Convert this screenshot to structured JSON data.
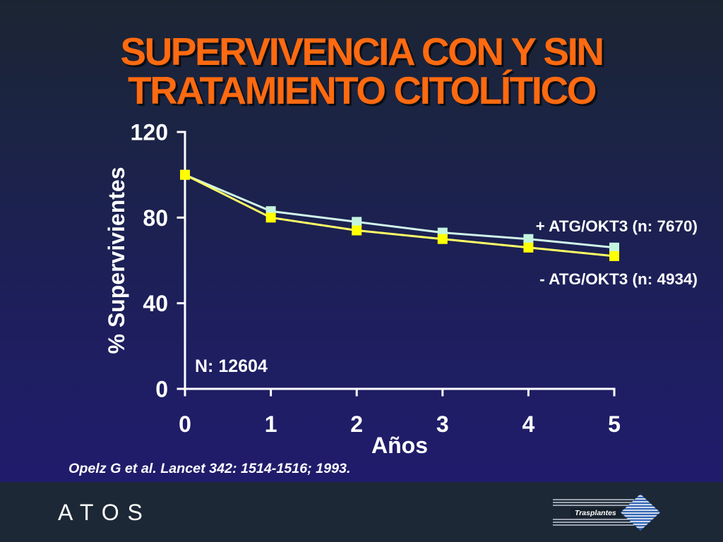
{
  "slide": {
    "citation": "Opelz G et al. Lancet 342: 1514-1516; 1993.",
    "title_color": "#ff6a10"
  },
  "footer": {
    "brand": "A T O S",
    "logo_text": "Trasplantes"
  },
  "chart_data": {
    "type": "line",
    "title": "SUPERVIVENCIA CON Y SIN TRATAMIENTO CITOLÍTICO",
    "xlabel": "Años",
    "ylabel": "% Supervivientes",
    "x": [
      0,
      1,
      2,
      3,
      4,
      5
    ],
    "xlim": [
      0,
      5
    ],
    "ylim": [
      0,
      120
    ],
    "yticks": [
      0,
      40,
      80,
      120
    ],
    "series": [
      {
        "name": "+ ATG/OKT3 (n: 7670)",
        "values": [
          100,
          83,
          78,
          73,
          70,
          66
        ],
        "color": "#c4f4de",
        "line_color": "#d0f4e8"
      },
      {
        "name": "- ATG/OKT3 (n: 4934)",
        "values": [
          100,
          80,
          74,
          70,
          66,
          62
        ],
        "color": "#ffff00",
        "line_color": "#ffff66"
      }
    ],
    "annotation": "N: 12604",
    "grid": false,
    "legend": "right"
  }
}
